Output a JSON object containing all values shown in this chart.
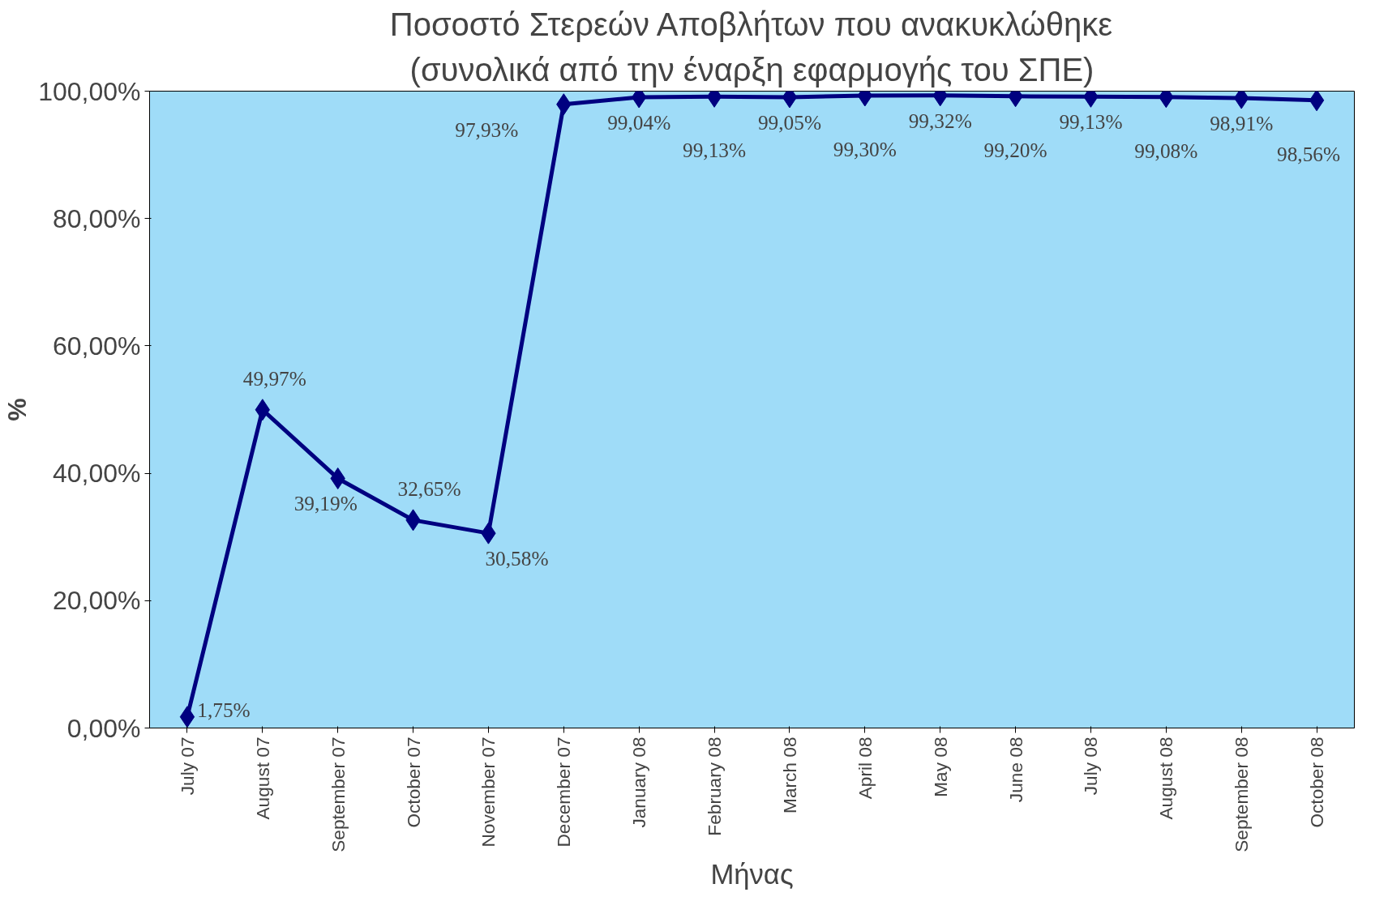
{
  "chart_data": {
    "type": "line",
    "title": "Ποσοστό Στερεών Αποβλήτων που ανακυκλώθηκε",
    "subtitle": "(συνολικά από την έναρξη εφαρμογής του ΣΠΕ)",
    "xlabel": "Μήνας",
    "ylabel": "%",
    "categories": [
      "July 07",
      "August 07",
      "September 07",
      "October 07",
      "November 07",
      "December 07",
      "January 08",
      "February 08",
      "March 08",
      "April 08",
      "May 08",
      "June 08",
      "July 08",
      "August 08",
      "September 08",
      "October 08"
    ],
    "series": [
      {
        "color": "#000080",
        "values": [
          1.75,
          49.97,
          39.19,
          32.65,
          30.58,
          97.93,
          99.04,
          99.13,
          99.05,
          99.3,
          99.32,
          99.2,
          99.13,
          99.08,
          98.91,
          98.56
        ],
        "value_labels": [
          "1,75%",
          "49,97%",
          "39,19%",
          "32,65%",
          "30,58%",
          "97,93%",
          "99,04%",
          "99,13%",
          "99,05%",
          "99,30%",
          "99,32%",
          "99,20%",
          "99,13%",
          "99,08%",
          "98,91%",
          "98,56%"
        ]
      }
    ],
    "ylim": [
      0,
      100
    ],
    "yticks": [
      {
        "value": 0,
        "label": "0,00%"
      },
      {
        "value": 20,
        "label": "20,00%"
      },
      {
        "value": 40,
        "label": "40,00%"
      },
      {
        "value": 60,
        "label": "60,00%"
      },
      {
        "value": 80,
        "label": "80,00%"
      },
      {
        "value": 100,
        "label": "100,00%"
      }
    ],
    "grid": false,
    "marker": "diamond",
    "line_style": "solid"
  }
}
